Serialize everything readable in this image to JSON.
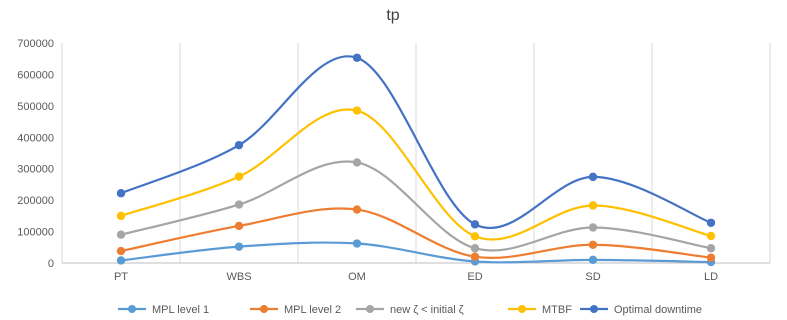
{
  "chart_data": {
    "type": "line",
    "title": "tp",
    "categories": [
      "PT",
      "WBS",
      "OM",
      "ED",
      "SD",
      "LD"
    ],
    "ylim": [
      0,
      700000
    ],
    "yticks": [
      "0",
      "100000",
      "200000",
      "300000",
      "400000",
      "500000",
      "600000",
      "700000"
    ],
    "grid": "vertical",
    "legend": "bottom",
    "smooth": true,
    "series": [
      {
        "name": "MPL level 1",
        "color": "#5B9BD5",
        "values": [
          8000,
          52000,
          62000,
          5000,
          10000,
          3000
        ]
      },
      {
        "name": "MPL level 2",
        "color": "#ED7D31",
        "values": [
          38000,
          118000,
          170000,
          20000,
          58000,
          17000
        ]
      },
      {
        "name": "new ζ < initial ζ",
        "color": "#A5A5A5",
        "values": [
          90000,
          186000,
          320000,
          47000,
          113000,
          47000
        ]
      },
      {
        "name": "MTBF",
        "color": "#FFC000",
        "values": [
          150000,
          275000,
          485000,
          85000,
          183000,
          86000
        ]
      },
      {
        "name": "Optimal downtime",
        "color": "#4472C4",
        "values": [
          222000,
          375000,
          653000,
          123000,
          274000,
          128000
        ]
      }
    ]
  }
}
